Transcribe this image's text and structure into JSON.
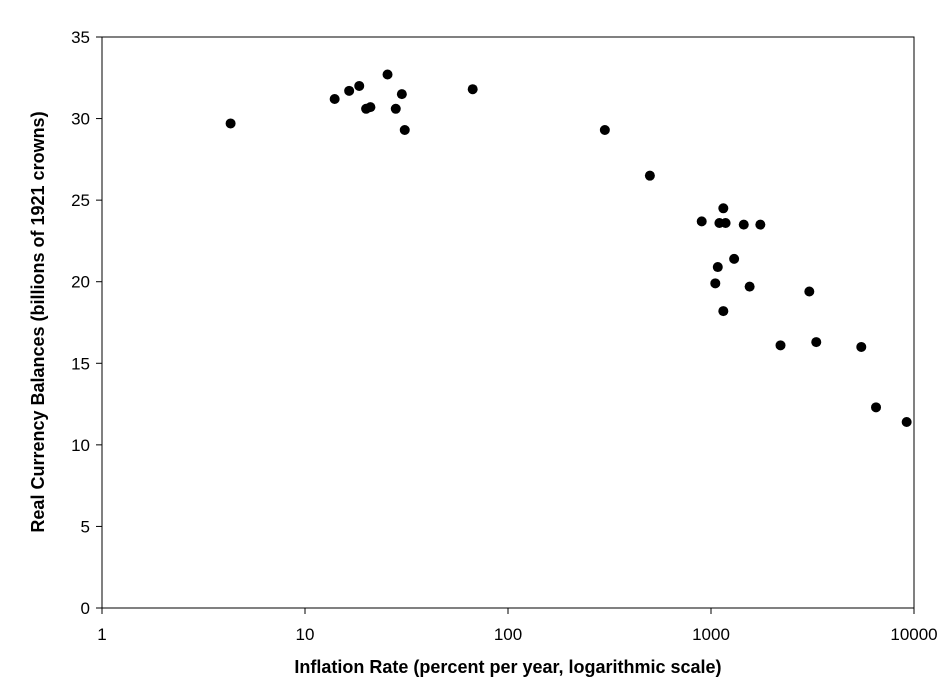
{
  "chart_data": {
    "type": "scatter",
    "title": "",
    "xlabel": "Inflation Rate (percent per year, logarithmic scale)",
    "ylabel": "Real Currency Balances (billions of 1921 crowns)",
    "x_scale": "log",
    "xlim": [
      1,
      10000
    ],
    "ylim": [
      0,
      35
    ],
    "x_ticks": [
      1,
      10,
      100,
      1000,
      10000
    ],
    "x_tick_labels": [
      "1",
      "10",
      "100",
      "1000",
      "10000"
    ],
    "y_ticks": [
      0,
      5,
      10,
      15,
      20,
      25,
      30,
      35
    ],
    "y_tick_labels": [
      "0",
      "5",
      "10",
      "15",
      "20",
      "25",
      "30",
      "35"
    ],
    "grid": false,
    "legend": false,
    "marker_color": "#000000",
    "points": [
      {
        "x": 4.3,
        "y": 29.7
      },
      {
        "x": 14,
        "y": 31.2
      },
      {
        "x": 16.5,
        "y": 31.7
      },
      {
        "x": 18.5,
        "y": 32.0
      },
      {
        "x": 20,
        "y": 30.6
      },
      {
        "x": 21,
        "y": 30.7
      },
      {
        "x": 25.5,
        "y": 32.7
      },
      {
        "x": 28,
        "y": 30.6
      },
      {
        "x": 30,
        "y": 31.5
      },
      {
        "x": 31,
        "y": 29.3
      },
      {
        "x": 67,
        "y": 31.8
      },
      {
        "x": 300,
        "y": 29.3
      },
      {
        "x": 500,
        "y": 26.5
      },
      {
        "x": 900,
        "y": 23.7
      },
      {
        "x": 1100,
        "y": 23.6
      },
      {
        "x": 1150,
        "y": 24.5
      },
      {
        "x": 1180,
        "y": 23.6
      },
      {
        "x": 1450,
        "y": 23.5
      },
      {
        "x": 1750,
        "y": 23.5
      },
      {
        "x": 1080,
        "y": 20.9
      },
      {
        "x": 1300,
        "y": 21.4
      },
      {
        "x": 1050,
        "y": 19.9
      },
      {
        "x": 1550,
        "y": 19.7
      },
      {
        "x": 1150,
        "y": 18.2
      },
      {
        "x": 3050,
        "y": 19.4
      },
      {
        "x": 2200,
        "y": 16.1
      },
      {
        "x": 3300,
        "y": 16.3
      },
      {
        "x": 5500,
        "y": 16.0
      },
      {
        "x": 6500,
        "y": 12.3
      },
      {
        "x": 9200,
        "y": 11.4
      }
    ]
  }
}
